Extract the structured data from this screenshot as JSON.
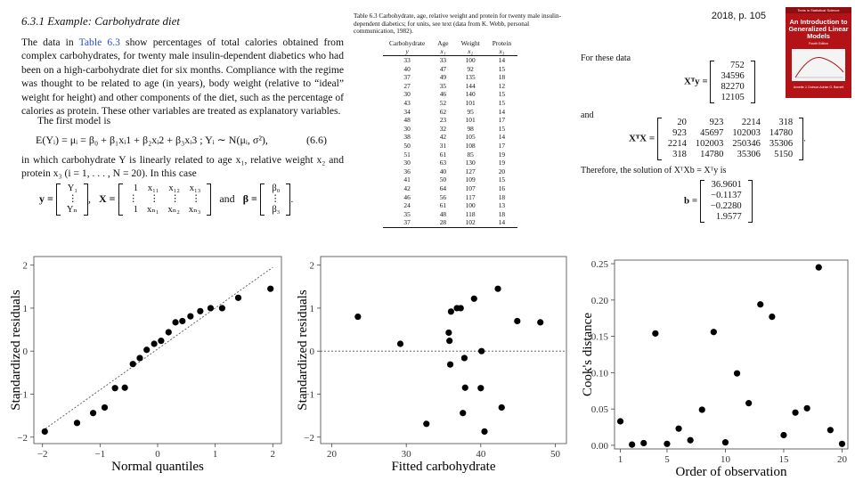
{
  "section_title": "6.3.1   Example: Carbohydrate diet",
  "page_ref": "2018, p. 105",
  "para1_a": "The data in ",
  "para1_link": "Table 6.3",
  "para1_b": " show percentages of total calories obtained from complex carbohydrates, for twenty male insulin-dependent diabetics who had been on a high-carbohydrate diet for six months. Compliance with the regime was thought to be related to age (in years), body weight (relative to “ideal” weight for height) and other components of the diet, such as the percentage of calories as protein. These other variables are treated as explanatory variables.",
  "para2": "The first model is",
  "eq1": "E(Yᵢ) = μᵢ = β₀ + β₁xᵢ1 + β₂xᵢ2 + β₃xᵢ3   ;   Yᵢ ∼ N(μᵢ, σ²),",
  "eq1_no": "(6.6)",
  "para3": "in which carbohydrate Y is linearly related to age x₁, relative weight x₂ and protein x₃ (i = 1, . . . , N = 20). In this case",
  "vec_y_label": "y =",
  "vec_y": [
    "Y₁",
    "⋮",
    "Yₙ"
  ],
  "mat_x_label": "X =",
  "mat_x": [
    [
      "1",
      "x₁₁",
      "x₁₂",
      "x₁₃"
    ],
    [
      "⋮",
      "⋮",
      "⋮",
      "⋮"
    ],
    [
      "1",
      "xₙ₁",
      "xₙ₂",
      "xₙ₃"
    ]
  ],
  "and_text": "and",
  "vec_b_label": "β =",
  "vec_beta": [
    "β₀",
    "⋮",
    "β₃"
  ],
  "table_caption": "Table 6.3  Carbohydrate, age, relative weight and protein for twenty male insulin-dependent diabetics; for units, see text (data from K. Webb, personal communication, 1982).",
  "table_headers": [
    "Carbohydrate",
    "Age",
    "Weight",
    "Protein"
  ],
  "table_symbols": [
    "y",
    "x₁",
    "x₂",
    "x₃"
  ],
  "table_rows": [
    [
      "33",
      "33",
      "100",
      "14"
    ],
    [
      "40",
      "47",
      "92",
      "15"
    ],
    [
      "37",
      "49",
      "135",
      "18"
    ],
    [
      "27",
      "35",
      "144",
      "12"
    ],
    [
      "30",
      "46",
      "140",
      "15"
    ],
    [
      "43",
      "52",
      "101",
      "15"
    ],
    [
      "34",
      "62",
      "95",
      "14"
    ],
    [
      "48",
      "23",
      "101",
      "17"
    ],
    [
      "30",
      "32",
      "98",
      "15"
    ],
    [
      "38",
      "42",
      "105",
      "14"
    ],
    [
      "50",
      "31",
      "108",
      "17"
    ],
    [
      "51",
      "61",
      "85",
      "19"
    ],
    [
      "30",
      "63",
      "130",
      "19"
    ],
    [
      "36",
      "40",
      "127",
      "20"
    ],
    [
      "41",
      "50",
      "109",
      "15"
    ],
    [
      "42",
      "64",
      "107",
      "16"
    ],
    [
      "46",
      "56",
      "117",
      "18"
    ],
    [
      "24",
      "61",
      "100",
      "13"
    ],
    [
      "35",
      "48",
      "118",
      "18"
    ],
    [
      "37",
      "28",
      "102",
      "14"
    ]
  ],
  "for_these": "For these data",
  "xty_label": "Xᵀy =",
  "xty": [
    "752",
    "34596",
    "82270",
    "12105"
  ],
  "and2": "and",
  "xtx_label": "XᵀX =",
  "xtx": [
    [
      "20",
      "923",
      "2214",
      "318"
    ],
    [
      "923",
      "45697",
      "102003",
      "14780"
    ],
    [
      "2214",
      "102003",
      "250346",
      "35306"
    ],
    [
      "318",
      "14780",
      "35306",
      "5150"
    ]
  ],
  "therefore": "Therefore, the solution of XᵀXb = Xᵀy is",
  "b_label": "b =",
  "b_vec": [
    "36.9601",
    "−0.1137",
    "−0.2280",
    "1.9577"
  ],
  "book": {
    "series": "Texts in Statistical Science",
    "title": "An Introduction to Generalized Linear Models",
    "edition": "Fourth Edition",
    "authors": "Annette J. Dobson  Adrian G. Barnett"
  },
  "chart_data": [
    {
      "type": "scatter",
      "title": "",
      "xlabel": "Normal quantiles",
      "ylabel": "Standardized residuals",
      "xlim": [
        -2.15,
        2.15
      ],
      "ylim": [
        -2.15,
        2.2
      ],
      "xticks": [
        -2,
        -1,
        0,
        1,
        2
      ],
      "yticks": [
        -2,
        -1,
        0,
        1,
        2
      ],
      "reference_line": {
        "from": [
          -2,
          -1.85
        ],
        "to": [
          2,
          1.95
        ]
      },
      "x": [
        -1.96,
        -1.4,
        -1.12,
        -0.92,
        -0.74,
        -0.57,
        -0.43,
        -0.31,
        -0.19,
        -0.06,
        0.06,
        0.19,
        0.31,
        0.43,
        0.57,
        0.74,
        0.92,
        1.12,
        1.4,
        1.96
      ],
      "y": [
        -1.87,
        -1.67,
        -1.44,
        -1.31,
        -0.86,
        -0.85,
        -0.3,
        -0.16,
        0.03,
        0.17,
        0.24,
        0.44,
        0.67,
        0.7,
        0.81,
        0.93,
        1.0,
        1.0,
        1.24,
        1.45
      ]
    },
    {
      "type": "scatter",
      "title": "",
      "xlabel": "Fitted carbohydrate",
      "ylabel": "Standardized residuals",
      "xlim": [
        18.5,
        51.5
      ],
      "ylim": [
        -2.15,
        2.2
      ],
      "xticks": [
        20,
        30,
        40,
        50
      ],
      "yticks": [
        -2,
        -1,
        0,
        1,
        2
      ],
      "reference_line_y": 0,
      "x": [
        23.5,
        29.2,
        32.7,
        35.7,
        35.8,
        35.9,
        36.0,
        36.8,
        37.3,
        37.6,
        37.8,
        37.9,
        39.1,
        40.0,
        40.1,
        40.5,
        42.3,
        42.8,
        44.9,
        48.0
      ],
      "y": [
        0.8,
        0.17,
        -1.69,
        0.43,
        0.24,
        -0.31,
        0.92,
        1.0,
        1.0,
        -1.44,
        -0.16,
        -0.85,
        1.22,
        -0.86,
        0.0,
        -1.87,
        1.45,
        -1.31,
        0.7,
        0.67
      ]
    },
    {
      "type": "scatter",
      "title": "",
      "xlabel": "Order of observation",
      "ylabel": "Cook's distance",
      "xlim": [
        0.5,
        20.5
      ],
      "ylim": [
        -0.005,
        0.255
      ],
      "xticks": [
        1,
        5,
        10,
        15,
        20
      ],
      "yticks": [
        0.0,
        0.05,
        0.1,
        0.15,
        0.2,
        0.25
      ],
      "x": [
        1,
        2,
        3,
        4,
        5,
        6,
        7,
        8,
        9,
        10,
        11,
        12,
        13,
        14,
        15,
        16,
        17,
        18,
        19,
        20
      ],
      "y": [
        0.033,
        0.001,
        0.003,
        0.154,
        0.002,
        0.023,
        0.007,
        0.049,
        0.156,
        0.004,
        0.099,
        0.058,
        0.194,
        0.177,
        0.014,
        0.045,
        0.051,
        0.245,
        0.021,
        0.002
      ]
    }
  ]
}
